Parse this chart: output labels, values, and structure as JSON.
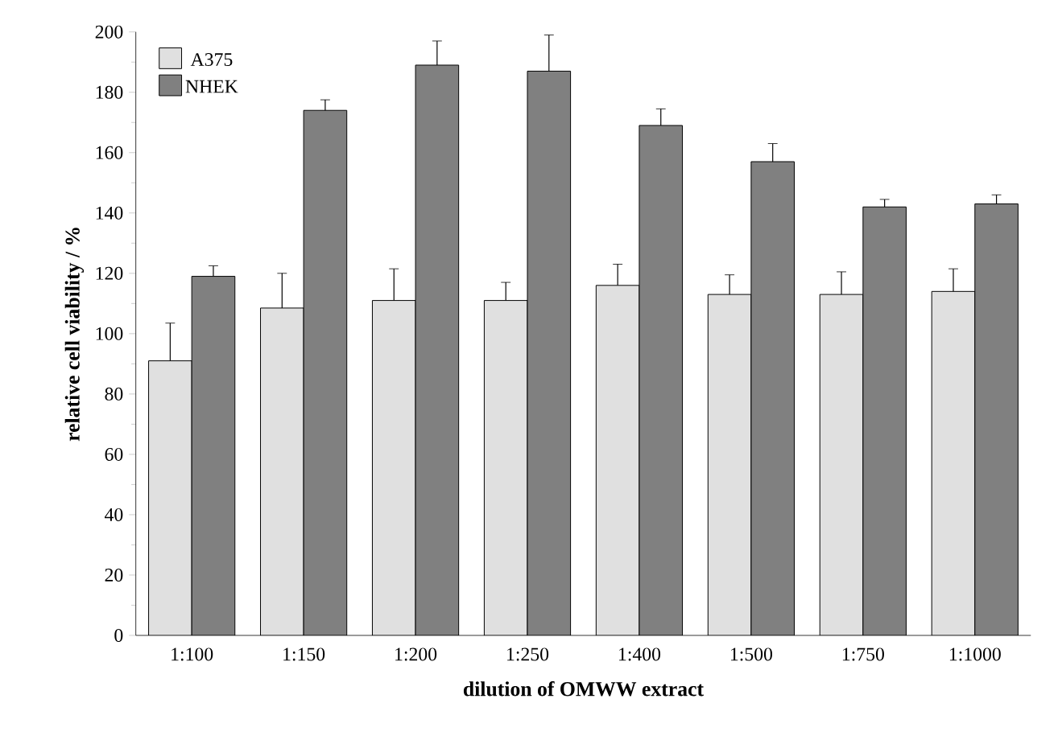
{
  "chart_data": {
    "type": "bar",
    "xlabel": "dilution of OMWW extract",
    "ylabel": "relative cell viability / %",
    "categories": [
      "1:100",
      "1:150",
      "1:200",
      "1:250",
      "1:400",
      "1:500",
      "1:750",
      "1:1000"
    ],
    "series": [
      {
        "name": "A375",
        "color": "#e0e0e0",
        "values": [
          91,
          108.5,
          111,
          111,
          116,
          113,
          113,
          114
        ],
        "errors": [
          12.5,
          11.5,
          10.5,
          6,
          7,
          6.5,
          7.5,
          7.5
        ]
      },
      {
        "name": "NHEK",
        "color": "#808080",
        "values": [
          119,
          174,
          189,
          187,
          169,
          157,
          142,
          143
        ],
        "errors": [
          3.5,
          3.5,
          8,
          12,
          5.5,
          6,
          2.5,
          3
        ]
      }
    ],
    "ylim": [
      0,
      200
    ],
    "yticks": [
      0,
      20,
      40,
      60,
      80,
      100,
      120,
      140,
      160,
      180,
      200
    ],
    "legend": "top left",
    "grid": false
  }
}
